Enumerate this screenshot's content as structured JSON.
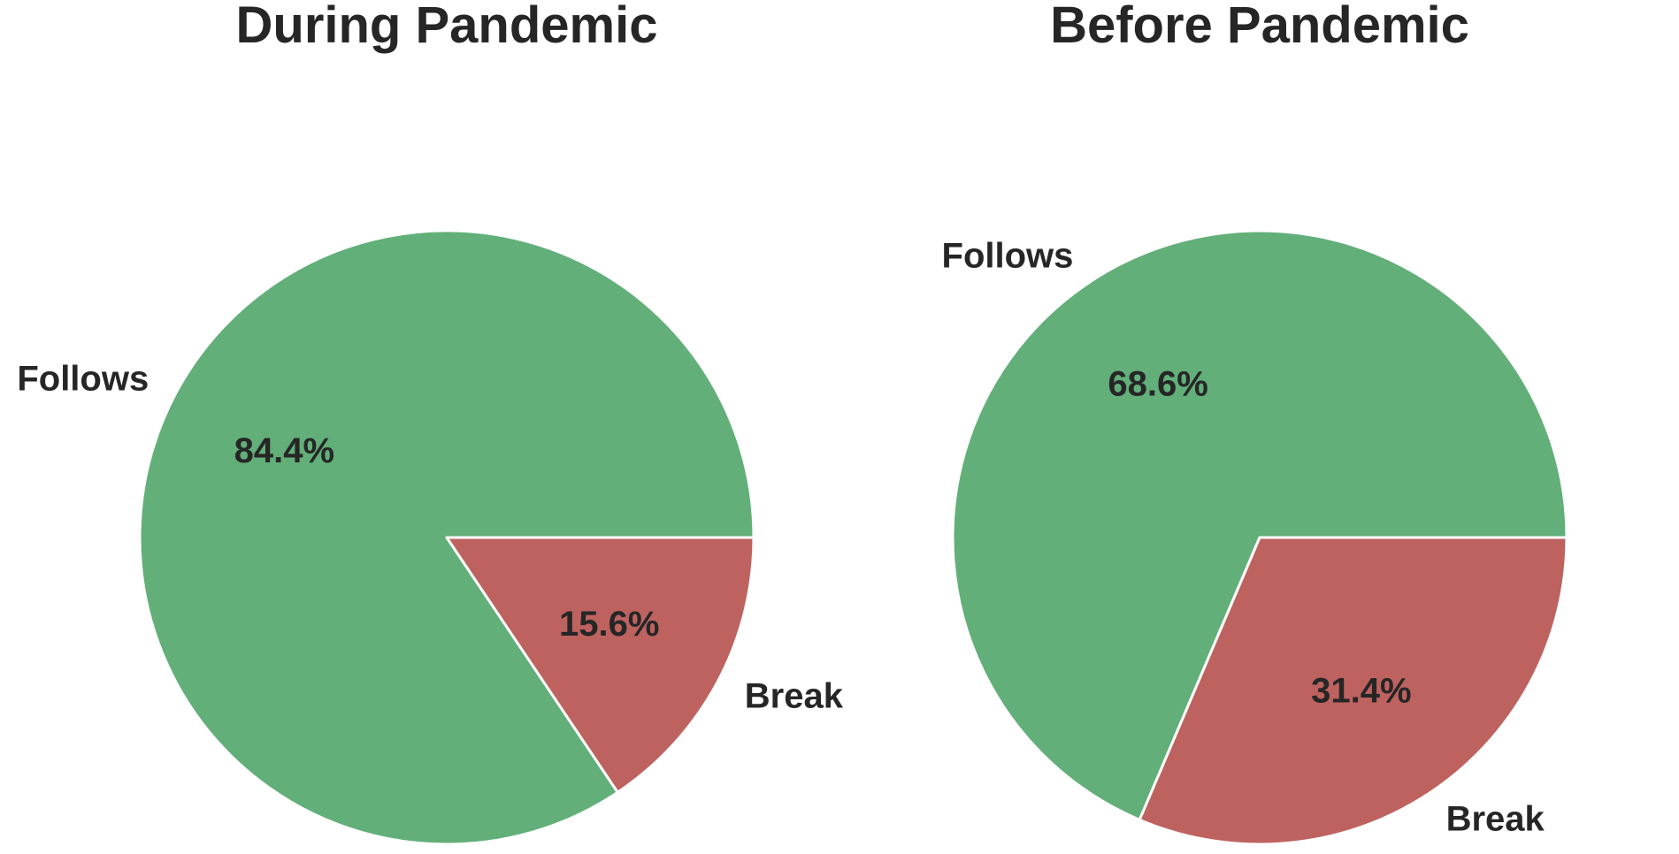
{
  "chart_data": [
    {
      "type": "pie",
      "title": "During Pandemic",
      "slices": [
        {
          "label": "Follows",
          "value": 84.4,
          "pct_label": "84.4%",
          "color": "#62AF79"
        },
        {
          "label": "Break",
          "value": 15.6,
          "pct_label": "15.6%",
          "color": "#BE6260"
        }
      ]
    },
    {
      "type": "pie",
      "title": "Before Pandemic",
      "slices": [
        {
          "label": "Follows",
          "value": 68.6,
          "pct_label": "68.6%",
          "color": "#62AF79"
        },
        {
          "label": "Break",
          "value": 31.4,
          "pct_label": "31.4%",
          "color": "#BE6260"
        }
      ]
    }
  ]
}
